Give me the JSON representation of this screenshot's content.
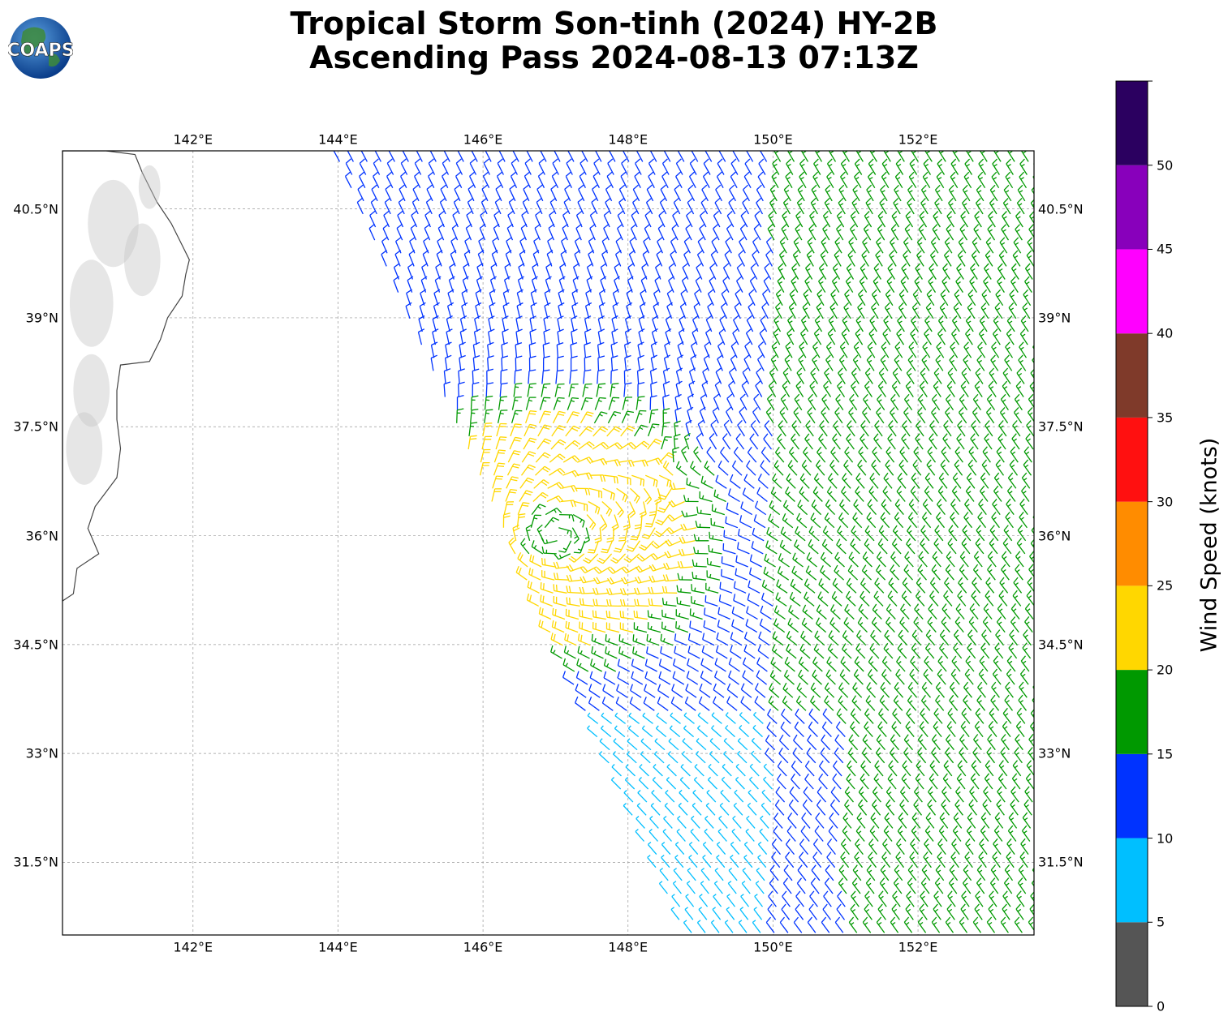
{
  "header": {
    "title_line1": "Tropical Storm Son-tinh (2024) HY-2B",
    "title_line2": "Ascending Pass 2024-08-13 07:13Z",
    "logo_text": "COAPS"
  },
  "map": {
    "lon_range": [
      140.2,
      153.6
    ],
    "lat_range": [
      30.5,
      41.3
    ],
    "lon_ticks": [
      {
        "value": 142,
        "label": "142°E"
      },
      {
        "value": 144,
        "label": "144°E"
      },
      {
        "value": 146,
        "label": "146°E"
      },
      {
        "value": 148,
        "label": "148°E"
      },
      {
        "value": 150,
        "label": "150°E"
      },
      {
        "value": 152,
        "label": "152°E"
      }
    ],
    "lat_ticks": [
      {
        "value": 40.5,
        "label": "40.5°N"
      },
      {
        "value": 39,
        "label": "39°N"
      },
      {
        "value": 37.5,
        "label": "37.5°N"
      },
      {
        "value": 36,
        "label": "36°N"
      },
      {
        "value": 34.5,
        "label": "34.5°N"
      },
      {
        "value": 33,
        "label": "33°N"
      },
      {
        "value": 31.5,
        "label": "31.5°N"
      }
    ],
    "storm_center": {
      "lon": 147.0,
      "lat": 36.0
    },
    "grid": true,
    "land_color": "#ffffff",
    "coast_color": "#444444"
  },
  "colorbar": {
    "label": "Wind Speed (knots)",
    "bins": [
      {
        "min": 0,
        "max": 5,
        "color": "#555555"
      },
      {
        "min": 5,
        "max": 10,
        "color": "#00bfff"
      },
      {
        "min": 10,
        "max": 15,
        "color": "#0033ff"
      },
      {
        "min": 15,
        "max": 20,
        "color": "#009900"
      },
      {
        "min": 20,
        "max": 25,
        "color": "#ffd700"
      },
      {
        "min": 25,
        "max": 30,
        "color": "#ff8c00"
      },
      {
        "min": 30,
        "max": 35,
        "color": "#ff1010"
      },
      {
        "min": 35,
        "max": 40,
        "color": "#7f3a2a"
      },
      {
        "min": 40,
        "max": 45,
        "color": "#ff00ff"
      },
      {
        "min": 45,
        "max": 50,
        "color": "#8800bb"
      },
      {
        "min": 50,
        "max": 55,
        "color": "#2b0060"
      }
    ],
    "tick_labels": [
      "0",
      "5",
      "10",
      "15",
      "20",
      "25",
      "30",
      "35",
      "40",
      "45",
      "50"
    ]
  }
}
